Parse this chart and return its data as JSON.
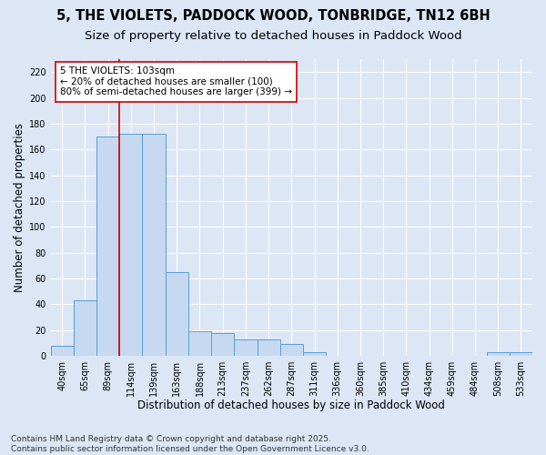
{
  "title_line1": "5, THE VIOLETS, PADDOCK WOOD, TONBRIDGE, TN12 6BH",
  "title_line2": "Size of property relative to detached houses in Paddock Wood",
  "xlabel": "Distribution of detached houses by size in Paddock Wood",
  "ylabel": "Number of detached properties",
  "categories": [
    "40sqm",
    "65sqm",
    "89sqm",
    "114sqm",
    "139sqm",
    "163sqm",
    "188sqm",
    "213sqm",
    "237sqm",
    "262sqm",
    "287sqm",
    "311sqm",
    "336sqm",
    "360sqm",
    "385sqm",
    "410sqm",
    "434sqm",
    "459sqm",
    "484sqm",
    "508sqm",
    "533sqm"
  ],
  "values": [
    8,
    43,
    170,
    172,
    172,
    65,
    19,
    18,
    13,
    13,
    9,
    3,
    0,
    0,
    0,
    0,
    0,
    0,
    0,
    3,
    3
  ],
  "bar_color": "#c6d9f0",
  "bar_edge_color": "#5a9fd4",
  "vline_x": 2.5,
  "vline_color": "#cc0000",
  "annotation_text": "5 THE VIOLETS: 103sqm\n← 20% of detached houses are smaller (100)\n80% of semi-detached houses are larger (399) →",
  "annotation_box_color": "#ffffff",
  "annotation_box_edge_color": "#cc0000",
  "ylim": [
    0,
    230
  ],
  "yticks": [
    0,
    20,
    40,
    60,
    80,
    100,
    120,
    140,
    160,
    180,
    200,
    220
  ],
  "background_color": "#dce6f5",
  "grid_color": "#ffffff",
  "footer_line1": "Contains HM Land Registry data © Crown copyright and database right 2025.",
  "footer_line2": "Contains public sector information licensed under the Open Government Licence v3.0.",
  "title_fontsize": 10.5,
  "subtitle_fontsize": 9.5,
  "axis_label_fontsize": 8.5,
  "tick_fontsize": 7,
  "annotation_fontsize": 7.5,
  "footer_fontsize": 6.5
}
